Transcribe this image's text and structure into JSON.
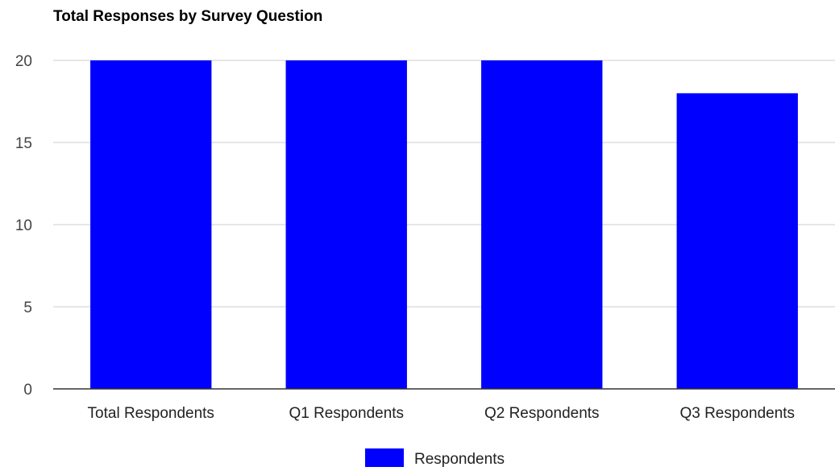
{
  "chart_data": {
    "type": "bar",
    "title": "Total Responses by Survey Question",
    "xlabel": "",
    "ylabel": "",
    "categories": [
      "Total Respondents",
      "Q1 Respondents",
      "Q2 Respondents",
      "Q3 Respondents"
    ],
    "series": [
      {
        "name": "Respondents",
        "values": [
          20,
          20,
          20,
          18
        ],
        "color": "#0000ff"
      }
    ],
    "ylim": [
      0,
      20
    ],
    "yticks": [
      0,
      5,
      10,
      15,
      20
    ],
    "grid": true,
    "legend_position": "bottom"
  }
}
